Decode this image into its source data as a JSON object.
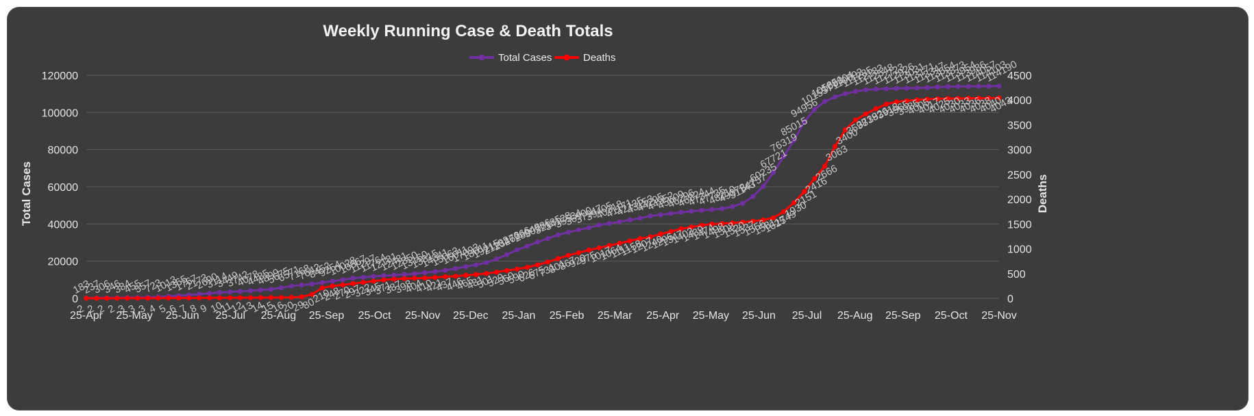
{
  "chart_data": {
    "type": "line",
    "title": "Weekly Running Case & Death Totals",
    "legend": "top-center",
    "grid": "horizontal",
    "x_tick_labels": [
      "25-Apr",
      "25-May",
      "25-Jun",
      "25-Jul",
      "25-Aug",
      "25-Sep",
      "25-Oct",
      "25-Nov",
      "25-Dec",
      "25-Jan",
      "25-Feb",
      "25-Mar",
      "25-Apr",
      "25-May",
      "25-Jun",
      "25-Jul",
      "25-Aug",
      "25-Sep",
      "25-Oct",
      "25-Nov"
    ],
    "y_left": {
      "label": "Total Cases",
      "ylim": [
        0,
        120000
      ],
      "ticks": [
        0,
        20000,
        40000,
        60000,
        80000,
        100000,
        120000
      ]
    },
    "y_right": {
      "label": "Deaths",
      "ylim": [
        0,
        4500
      ],
      "ticks": [
        0,
        500,
        1000,
        1500,
        2000,
        2500,
        3000,
        3500,
        4000,
        4500
      ]
    },
    "colors": {
      "cases": "#7030a0",
      "deaths": "#ff0000"
    },
    "series": [
      {
        "name": "Total Cases",
        "axis": "left",
        "values": [
          183,
          237,
          306,
          346,
          384,
          455,
          557,
          723,
          1013,
          1365,
          1767,
          2173,
          2690,
          3114,
          3449,
          3742,
          4078,
          4485,
          4899,
          5675,
          6571,
          7168,
          7642,
          8452,
          9254,
          10028,
          10867,
          11297,
          11764,
          12181,
          12481,
          12850,
          13160,
          13815,
          14341,
          15063,
          16011,
          17093,
          18011,
          19215,
          21182,
          23472,
          26066,
          28048,
          30286,
          32185,
          34128,
          35534,
          36900,
          37947,
          39405,
          40318,
          41171,
          42135,
          43153,
          44295,
          44952,
          45609,
          46296,
          46824,
          47344,
          47735,
          48210,
          49372,
          51143,
          54757,
          60235,
          67721,
          76319,
          85015,
          94956,
          101557,
          105851,
          108304,
          110092,
          111285,
          112183,
          112548,
          112723,
          112926,
          113031,
          113171,
          113347,
          113654,
          113873,
          113954,
          113986,
          114057,
          114103,
          114190
        ]
      },
      {
        "name": "Deaths",
        "axis": "right",
        "values": [
          2,
          2,
          2,
          2,
          3,
          3,
          3,
          4,
          5,
          6,
          7,
          8,
          9,
          10,
          11,
          12,
          13,
          14,
          15,
          16,
          20,
          29,
          80,
          210,
          248,
          270,
          297,
          322,
          345,
          371,
          387,
          398,
          404,
          410,
          421,
          437,
          446,
          465,
          481,
          501,
          529,
          560,
          590,
          626,
          675,
          731,
          801,
          867,
          920,
          975,
          1017,
          1064,
          1111,
          1158,
          1207,
          1240,
          1296,
          1347,
          1403,
          1439,
          1474,
          1498,
          1508,
          1520,
          1537,
          1556,
          1581,
          1625,
          1749,
          1930,
          2151,
          2416,
          2666,
          3063,
          3400,
          3598,
          3719,
          3826,
          3918,
          3965,
          3985,
          4005,
          4017,
          4025,
          4030,
          4033,
          4036,
          4038,
          4040,
          4043
        ]
      }
    ],
    "data_labels": {
      "cases": [
        "183",
        "237",
        "306",
        "346",
        "384",
        "455",
        "557",
        "723",
        "1013",
        "1365",
        "1767",
        "2173",
        "2690",
        "3114",
        "3449",
        "3742",
        "4078",
        "4485",
        "4899",
        "5675",
        "6571",
        "7168",
        "7642",
        "8452",
        "9254",
        "10028",
        "10867",
        "11297",
        "11764",
        "12181",
        "12481",
        "12850",
        "13160",
        "13815",
        "14341",
        "15063",
        "16011",
        "17093",
        "18011",
        "19215",
        "21182",
        "23472",
        "26066",
        "28048",
        "30286",
        "32185",
        "34128",
        "35534",
        "36900",
        "37947",
        "39405",
        "40318",
        "41171",
        "42135",
        "43153",
        "44295",
        "44952",
        "45609",
        "46296",
        "46824",
        "47344",
        "47735",
        "48210",
        "49372",
        "51143",
        "54757",
        "60235",
        "67721",
        "76319",
        "85015",
        "94956",
        "101557",
        "105851",
        "108304",
        "110092",
        "111285",
        "112183",
        "112548",
        "112723",
        "112926",
        "113031",
        "113171",
        "113347",
        "113654",
        "113873",
        "113954",
        "113986",
        "114057",
        "114103",
        "114190"
      ],
      "deaths": [
        "2",
        "2",
        "2",
        "2",
        "3",
        "3",
        "3",
        "4",
        "5",
        "6",
        "7",
        "8",
        "9",
        "10",
        "11",
        "12",
        "13",
        "14",
        "15",
        "16",
        "20",
        "29",
        "80",
        "210",
        "248",
        "270",
        "297",
        "322",
        "345",
        "371",
        "387",
        "398",
        "404",
        "410",
        "421",
        "437",
        "446",
        "465",
        "481",
        "501",
        "529",
        "560",
        "590",
        "626",
        "675",
        "731",
        "801",
        "867",
        "920",
        "975",
        "1017",
        "1064",
        "1111",
        "1158",
        "1207",
        "1240",
        "1296",
        "1347",
        "1403",
        "1439",
        "1474",
        "1498",
        "1508",
        "1520",
        "1537",
        "1556",
        "1581",
        "1625",
        "1749",
        "1930",
        "2151",
        "2416",
        "2666",
        "3063",
        "3400",
        "3598",
        "3719",
        "3826",
        "3918",
        "3965",
        "3985",
        "4005",
        "4017",
        "4025",
        "4030",
        "4033",
        "4036",
        "4038",
        "4040",
        "4043"
      ]
    }
  }
}
